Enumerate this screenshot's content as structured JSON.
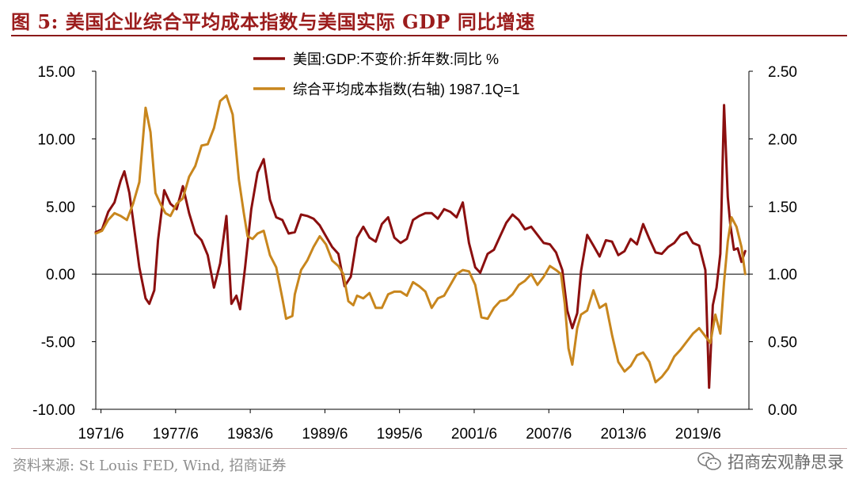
{
  "header": {
    "figure_title": "图 5:  美国企业综合平均成本指数与美国实际 GDP 同比增速"
  },
  "footer": {
    "source": "资料来源:  St Louis FED, Wind, 招商证券",
    "watermark": "招商宏观静思录",
    "watermark_icon": "wechat-icon"
  },
  "chart_data": {
    "type": "line",
    "title": "",
    "x_tick_labels": [
      "1971/6",
      "1977/6",
      "1983/6",
      "1989/6",
      "1995/6",
      "2001/6",
      "2007/6",
      "2013/6",
      "2019/6"
    ],
    "x_range": [
      1971.0,
      2023.5
    ],
    "y_left": {
      "range": [
        -10,
        15
      ],
      "ticks": [
        "-10.00",
        "-5.00",
        "0.00",
        "5.00",
        "10.00",
        "15.00"
      ]
    },
    "y_right": {
      "range": [
        0,
        2.5
      ],
      "ticks": [
        "0.00",
        "0.50",
        "1.00",
        "1.50",
        "2.00",
        "2.50"
      ]
    },
    "grid": false,
    "legend_placement": "top-center",
    "series": [
      {
        "name": "美国:GDP:不变价:折年数:同比 %",
        "axis": "left",
        "color": "#8b0f0f",
        "points": [
          [
            1971.0,
            3.1
          ],
          [
            1971.5,
            3.3
          ],
          [
            1972.0,
            4.6
          ],
          [
            1972.5,
            5.3
          ],
          [
            1973.0,
            6.9
          ],
          [
            1973.3,
            7.6
          ],
          [
            1973.7,
            6.0
          ],
          [
            1974.0,
            4.0
          ],
          [
            1974.5,
            0.5
          ],
          [
            1975.0,
            -1.8
          ],
          [
            1975.3,
            -2.2
          ],
          [
            1975.7,
            -1.2
          ],
          [
            1976.0,
            2.5
          ],
          [
            1976.5,
            6.2
          ],
          [
            1977.0,
            5.2
          ],
          [
            1977.5,
            4.8
          ],
          [
            1978.0,
            6.5
          ],
          [
            1978.5,
            4.5
          ],
          [
            1979.0,
            3.0
          ],
          [
            1979.5,
            2.5
          ],
          [
            1980.0,
            1.4
          ],
          [
            1980.5,
            -1.0
          ],
          [
            1981.0,
            0.8
          ],
          [
            1981.5,
            4.3
          ],
          [
            1981.9,
            -2.2
          ],
          [
            1982.3,
            -1.6
          ],
          [
            1982.6,
            -2.6
          ],
          [
            1983.0,
            0.5
          ],
          [
            1983.5,
            4.8
          ],
          [
            1984.0,
            7.5
          ],
          [
            1984.5,
            8.5
          ],
          [
            1985.0,
            5.5
          ],
          [
            1985.5,
            4.2
          ],
          [
            1986.0,
            4.0
          ],
          [
            1986.5,
            3.0
          ],
          [
            1987.0,
            3.1
          ],
          [
            1987.5,
            4.4
          ],
          [
            1988.0,
            4.3
          ],
          [
            1988.5,
            4.1
          ],
          [
            1989.0,
            3.6
          ],
          [
            1989.5,
            2.8
          ],
          [
            1990.0,
            2.0
          ],
          [
            1990.5,
            1.5
          ],
          [
            1991.0,
            -0.9
          ],
          [
            1991.5,
            -0.2
          ],
          [
            1992.0,
            2.7
          ],
          [
            1992.5,
            3.5
          ],
          [
            1993.0,
            2.7
          ],
          [
            1993.5,
            2.4
          ],
          [
            1994.0,
            3.7
          ],
          [
            1994.5,
            4.2
          ],
          [
            1995.0,
            2.7
          ],
          [
            1995.5,
            2.3
          ],
          [
            1996.0,
            2.6
          ],
          [
            1996.5,
            4.0
          ],
          [
            1997.0,
            4.3
          ],
          [
            1997.5,
            4.5
          ],
          [
            1998.0,
            4.5
          ],
          [
            1998.5,
            4.1
          ],
          [
            1999.0,
            4.8
          ],
          [
            1999.5,
            4.6
          ],
          [
            2000.0,
            4.2
          ],
          [
            2000.5,
            5.3
          ],
          [
            2001.0,
            2.3
          ],
          [
            2001.5,
            0.5
          ],
          [
            2001.9,
            0.1
          ],
          [
            2002.5,
            1.5
          ],
          [
            2003.0,
            1.8
          ],
          [
            2003.5,
            2.8
          ],
          [
            2004.0,
            3.8
          ],
          [
            2004.5,
            4.4
          ],
          [
            2005.0,
            4.0
          ],
          [
            2005.5,
            3.3
          ],
          [
            2006.0,
            3.5
          ],
          [
            2006.5,
            2.9
          ],
          [
            2007.0,
            2.3
          ],
          [
            2007.5,
            2.2
          ],
          [
            2008.0,
            1.6
          ],
          [
            2008.5,
            0.3
          ],
          [
            2008.9,
            -2.7
          ],
          [
            2009.3,
            -4.0
          ],
          [
            2009.7,
            -2.9
          ],
          [
            2010.0,
            0.2
          ],
          [
            2010.5,
            2.9
          ],
          [
            2011.0,
            2.1
          ],
          [
            2011.5,
            1.3
          ],
          [
            2012.0,
            2.5
          ],
          [
            2012.5,
            2.4
          ],
          [
            2013.0,
            1.4
          ],
          [
            2013.5,
            1.7
          ],
          [
            2014.0,
            2.6
          ],
          [
            2014.5,
            2.2
          ],
          [
            2015.0,
            3.7
          ],
          [
            2015.5,
            2.6
          ],
          [
            2016.0,
            1.6
          ],
          [
            2016.5,
            1.5
          ],
          [
            2017.0,
            2.0
          ],
          [
            2017.5,
            2.3
          ],
          [
            2018.0,
            2.9
          ],
          [
            2018.5,
            3.1
          ],
          [
            2019.0,
            2.3
          ],
          [
            2019.5,
            2.1
          ],
          [
            2020.0,
            0.3
          ],
          [
            2020.3,
            -8.4
          ],
          [
            2020.6,
            -2.3
          ],
          [
            2020.9,
            -1.0
          ],
          [
            2021.2,
            1.5
          ],
          [
            2021.5,
            12.5
          ],
          [
            2021.8,
            5.7
          ],
          [
            2022.0,
            3.7
          ],
          [
            2022.3,
            1.8
          ],
          [
            2022.6,
            1.9
          ],
          [
            2022.9,
            0.9
          ],
          [
            2023.2,
            1.7
          ]
        ]
      },
      {
        "name": "综合平均成本指数(右轴) 1987.1Q=1",
        "axis": "right",
        "color": "#c8861d",
        "points": [
          [
            1971.0,
            1.3
          ],
          [
            1971.5,
            1.32
          ],
          [
            1972.0,
            1.4
          ],
          [
            1972.5,
            1.45
          ],
          [
            1973.0,
            1.43
          ],
          [
            1973.5,
            1.4
          ],
          [
            1974.0,
            1.52
          ],
          [
            1974.5,
            1.68
          ],
          [
            1975.0,
            2.23
          ],
          [
            1975.4,
            2.05
          ],
          [
            1975.8,
            1.6
          ],
          [
            1976.2,
            1.52
          ],
          [
            1976.6,
            1.45
          ],
          [
            1977.0,
            1.43
          ],
          [
            1977.5,
            1.52
          ],
          [
            1978.0,
            1.56
          ],
          [
            1978.5,
            1.72
          ],
          [
            1979.0,
            1.8
          ],
          [
            1979.5,
            1.95
          ],
          [
            1980.0,
            1.96
          ],
          [
            1980.5,
            2.08
          ],
          [
            1981.0,
            2.28
          ],
          [
            1981.5,
            2.32
          ],
          [
            1982.0,
            2.18
          ],
          [
            1982.5,
            1.7
          ],
          [
            1982.9,
            1.45
          ],
          [
            1983.2,
            1.28
          ],
          [
            1983.6,
            1.26
          ],
          [
            1984.0,
            1.3
          ],
          [
            1984.5,
            1.32
          ],
          [
            1985.0,
            1.14
          ],
          [
            1985.5,
            1.05
          ],
          [
            1986.0,
            0.82
          ],
          [
            1986.3,
            0.67
          ],
          [
            1986.8,
            0.69
          ],
          [
            1987.0,
            0.85
          ],
          [
            1987.5,
            1.03
          ],
          [
            1988.0,
            1.1
          ],
          [
            1988.5,
            1.2
          ],
          [
            1989.0,
            1.28
          ],
          [
            1989.5,
            1.22
          ],
          [
            1990.0,
            1.1
          ],
          [
            1990.5,
            1.06
          ],
          [
            1990.9,
            1.0
          ],
          [
            1991.3,
            0.8
          ],
          [
            1991.7,
            0.77
          ],
          [
            1992.0,
            0.84
          ],
          [
            1992.5,
            0.82
          ],
          [
            1993.0,
            0.86
          ],
          [
            1993.5,
            0.75
          ],
          [
            1994.0,
            0.75
          ],
          [
            1994.5,
            0.85
          ],
          [
            1995.0,
            0.87
          ],
          [
            1995.5,
            0.87
          ],
          [
            1996.0,
            0.84
          ],
          [
            1996.5,
            0.94
          ],
          [
            1997.0,
            0.91
          ],
          [
            1997.5,
            0.87
          ],
          [
            1998.0,
            0.75
          ],
          [
            1998.5,
            0.82
          ],
          [
            1999.0,
            0.84
          ],
          [
            1999.5,
            0.92
          ],
          [
            2000.0,
            1.0
          ],
          [
            2000.5,
            1.03
          ],
          [
            2001.0,
            1.02
          ],
          [
            2001.5,
            0.92
          ],
          [
            2002.0,
            0.68
          ],
          [
            2002.5,
            0.67
          ],
          [
            2003.0,
            0.75
          ],
          [
            2003.5,
            0.8
          ],
          [
            2004.0,
            0.81
          ],
          [
            2004.5,
            0.85
          ],
          [
            2005.0,
            0.92
          ],
          [
            2005.5,
            0.95
          ],
          [
            2006.0,
            1.0
          ],
          [
            2006.5,
            0.92
          ],
          [
            2007.0,
            0.98
          ],
          [
            2007.5,
            1.06
          ],
          [
            2008.0,
            1.03
          ],
          [
            2008.4,
            1.0
          ],
          [
            2008.7,
            0.78
          ],
          [
            2009.0,
            0.45
          ],
          [
            2009.3,
            0.33
          ],
          [
            2009.7,
            0.6
          ],
          [
            2010.0,
            0.7
          ],
          [
            2010.5,
            0.73
          ],
          [
            2011.0,
            0.88
          ],
          [
            2011.5,
            0.75
          ],
          [
            2012.0,
            0.78
          ],
          [
            2012.5,
            0.55
          ],
          [
            2013.0,
            0.35
          ],
          [
            2013.5,
            0.28
          ],
          [
            2014.0,
            0.32
          ],
          [
            2014.5,
            0.4
          ],
          [
            2015.0,
            0.42
          ],
          [
            2015.5,
            0.35
          ],
          [
            2016.0,
            0.2
          ],
          [
            2016.5,
            0.24
          ],
          [
            2017.0,
            0.3
          ],
          [
            2017.5,
            0.39
          ],
          [
            2018.0,
            0.44
          ],
          [
            2018.5,
            0.5
          ],
          [
            2019.0,
            0.56
          ],
          [
            2019.5,
            0.6
          ],
          [
            2020.0,
            0.54
          ],
          [
            2020.4,
            0.49
          ],
          [
            2020.8,
            0.7
          ],
          [
            2021.2,
            0.56
          ],
          [
            2021.5,
            0.94
          ],
          [
            2021.8,
            1.24
          ],
          [
            2022.1,
            1.42
          ],
          [
            2022.5,
            1.35
          ],
          [
            2022.9,
            1.2
          ],
          [
            2023.2,
            1.0
          ]
        ]
      }
    ]
  }
}
